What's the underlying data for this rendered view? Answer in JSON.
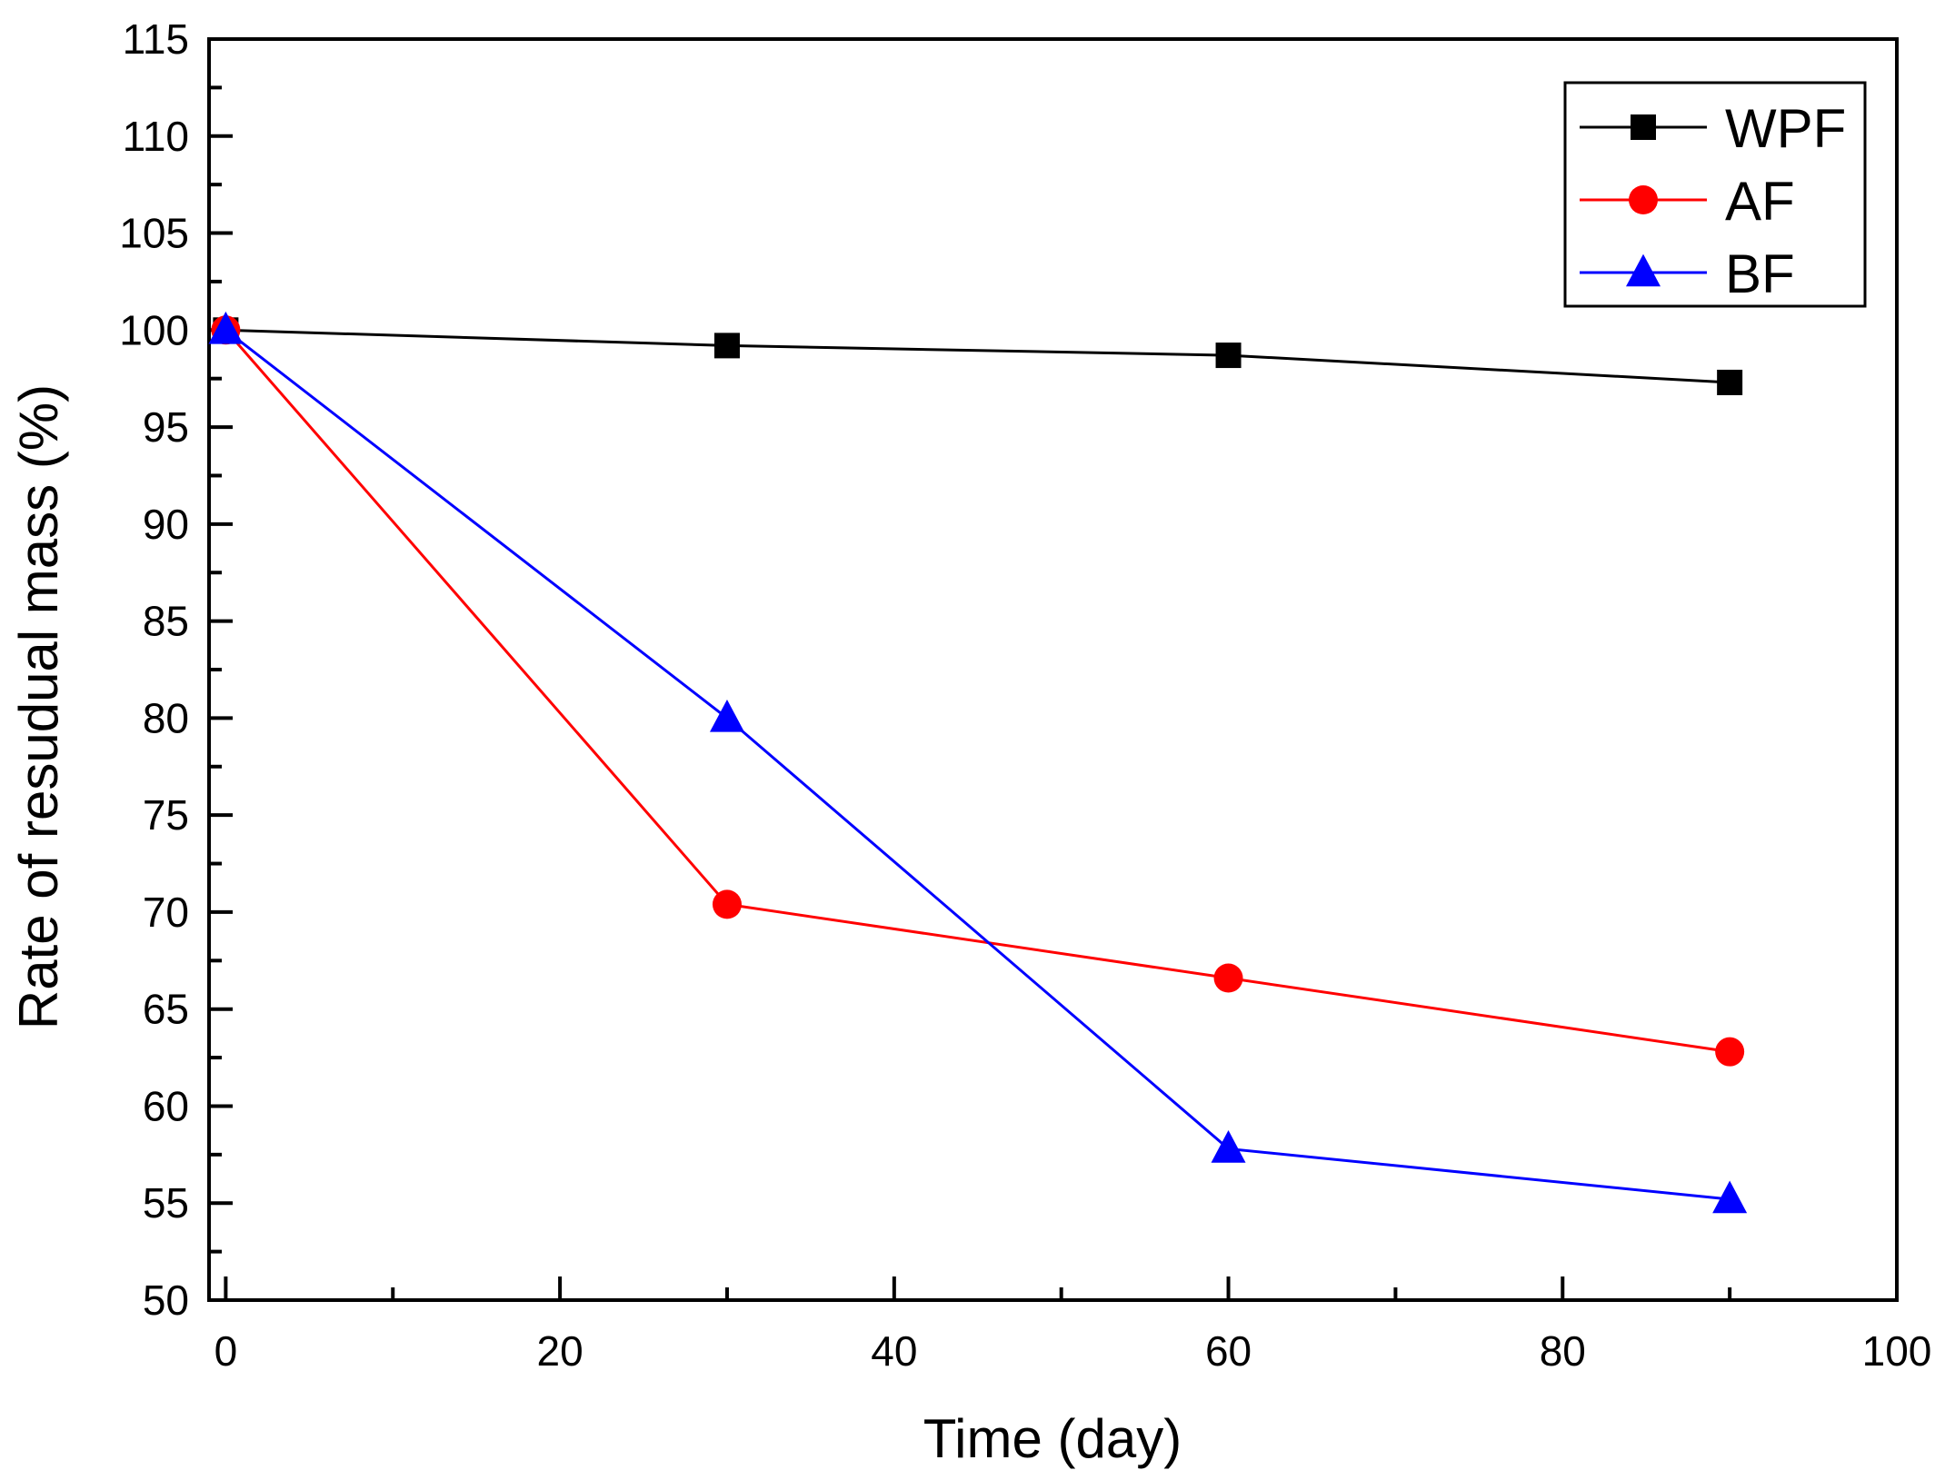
{
  "chart_data": {
    "type": "line",
    "title": "",
    "xlabel": "Time (day)",
    "ylabel": "Rate of resudual mass (%)",
    "xlim": [
      -1,
      100
    ],
    "ylim": [
      50,
      115
    ],
    "x_ticks": [
      0,
      20,
      40,
      60,
      80,
      100
    ],
    "x_tick_labels": [
      "0",
      "20",
      "40",
      "60",
      "80",
      "100"
    ],
    "x_minor_ticks": [
      10,
      30,
      50,
      70,
      90
    ],
    "y_ticks": [
      50,
      55,
      60,
      65,
      70,
      75,
      80,
      85,
      90,
      95,
      100,
      105,
      110,
      115
    ],
    "y_tick_labels": [
      "50",
      "55",
      "60",
      "65",
      "70",
      "75",
      "80",
      "85",
      "90",
      "95",
      "100",
      "105",
      "110",
      "115"
    ],
    "grid": false,
    "legend_position": "top-right",
    "x": [
      0,
      30,
      60,
      90
    ],
    "series": [
      {
        "name": "WPF",
        "color": "#000000",
        "marker": "square",
        "values": [
          100,
          99.2,
          98.7,
          97.3
        ]
      },
      {
        "name": "AF",
        "color": "#ff0000",
        "marker": "circle",
        "values": [
          100,
          70.4,
          66.6,
          62.8
        ]
      },
      {
        "name": "BF",
        "color": "#0000ff",
        "marker": "triangle",
        "values": [
          100,
          80,
          57.8,
          55.2
        ]
      }
    ]
  }
}
